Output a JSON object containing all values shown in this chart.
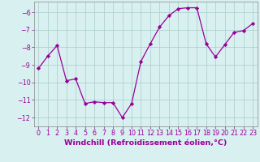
{
  "x": [
    0,
    1,
    2,
    3,
    4,
    5,
    6,
    7,
    8,
    9,
    10,
    11,
    12,
    13,
    14,
    15,
    16,
    17,
    18,
    19,
    20,
    21,
    22,
    23
  ],
  "y": [
    -9.2,
    -8.5,
    -7.9,
    -9.9,
    -9.8,
    -11.2,
    -11.1,
    -11.15,
    -11.15,
    -12.0,
    -11.2,
    -8.8,
    -7.8,
    -6.85,
    -6.2,
    -5.8,
    -5.75,
    -5.75,
    -7.8,
    -8.55,
    -7.85,
    -7.15,
    -7.05,
    -6.65
  ],
  "line_color": "#990099",
  "marker": "D",
  "marker_size": 2.2,
  "bg_color": "#d8f0f0",
  "grid_color": "#aacccc",
  "tick_color": "#990099",
  "xlabel": "Windchill (Refroidissement éolien,°C)",
  "xlabel_color": "#990099",
  "ylim": [
    -12.5,
    -5.4
  ],
  "xlim": [
    -0.5,
    23.5
  ],
  "yticks": [
    -12,
    -11,
    -10,
    -9,
    -8,
    -7,
    -6
  ],
  "xticks": [
    0,
    1,
    2,
    3,
    4,
    5,
    6,
    7,
    8,
    9,
    10,
    11,
    12,
    13,
    14,
    15,
    16,
    17,
    18,
    19,
    20,
    21,
    22,
    23
  ],
  "tick_fontsize": 5.8,
  "xlabel_fontsize": 6.8,
  "xlabel_fontweight": "bold"
}
